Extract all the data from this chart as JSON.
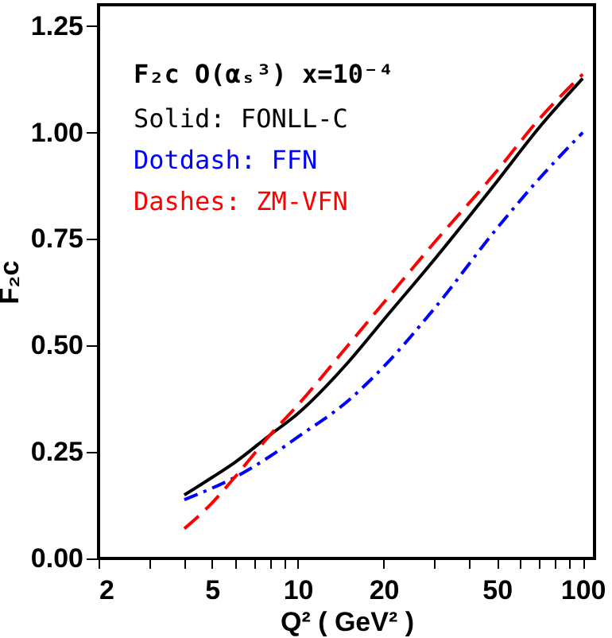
{
  "chart_data": {
    "type": "line",
    "title": "F₂c O(αₛ³) x=10⁻⁴",
    "xlabel": "Q² ( GeV² )",
    "ylabel": "F₂c",
    "x": [
      4,
      5,
      6,
      8,
      10,
      15,
      20,
      30,
      50,
      70,
      100
    ],
    "series": [
      {
        "name": "Solid: FONLL-C",
        "color": "#000000",
        "line_style": "solid",
        "values": [
          0.149,
          0.19,
          0.225,
          0.29,
          0.34,
          0.46,
          0.56,
          0.7,
          0.885,
          1.01,
          1.127
        ]
      },
      {
        "name": "Dotdash: FFN",
        "color": "#0000ff",
        "line_style": "dashdot",
        "values": [
          0.138,
          0.165,
          0.19,
          0.24,
          0.285,
          0.37,
          0.45,
          0.585,
          0.775,
          0.89,
          1.0
        ]
      },
      {
        "name": "Dashes: ZM-VFN",
        "color": "#ff0000",
        "line_style": "dashed",
        "values": [
          0.07,
          0.13,
          0.19,
          0.29,
          0.36,
          0.5,
          0.6,
          0.74,
          0.91,
          1.03,
          1.137
        ]
      }
    ],
    "log": "x",
    "xlim": [
      2,
      110
    ],
    "ylim": [
      0,
      1.3
    ],
    "xticks": [
      2,
      {
        "value": 3,
        "label": null
      },
      {
        "value": 4,
        "label": null
      },
      5,
      {
        "value": 6,
        "label": null
      },
      {
        "value": 7,
        "label": null
      },
      {
        "value": 8,
        "label": null
      },
      {
        "value": 9,
        "label": null
      },
      10,
      20,
      {
        "value": 30,
        "label": null
      },
      {
        "value": 40,
        "label": null
      },
      50,
      {
        "value": 60,
        "label": null
      },
      {
        "value": 70,
        "label": null
      },
      {
        "value": 80,
        "label": null
      },
      {
        "value": 90,
        "label": null
      },
      100
    ],
    "yticks": [
      {
        "value": 0,
        "label": "0.00"
      },
      {
        "value": 0.25,
        "label": "0.25"
      },
      {
        "value": 0.5,
        "label": "0.50"
      },
      {
        "value": 0.75,
        "label": "0.75"
      },
      {
        "value": 1.0,
        "label": "1.00"
      },
      {
        "value": 1.25,
        "label": "1.25"
      }
    ],
    "grid": false,
    "legend": "top left",
    "marker": "none"
  }
}
